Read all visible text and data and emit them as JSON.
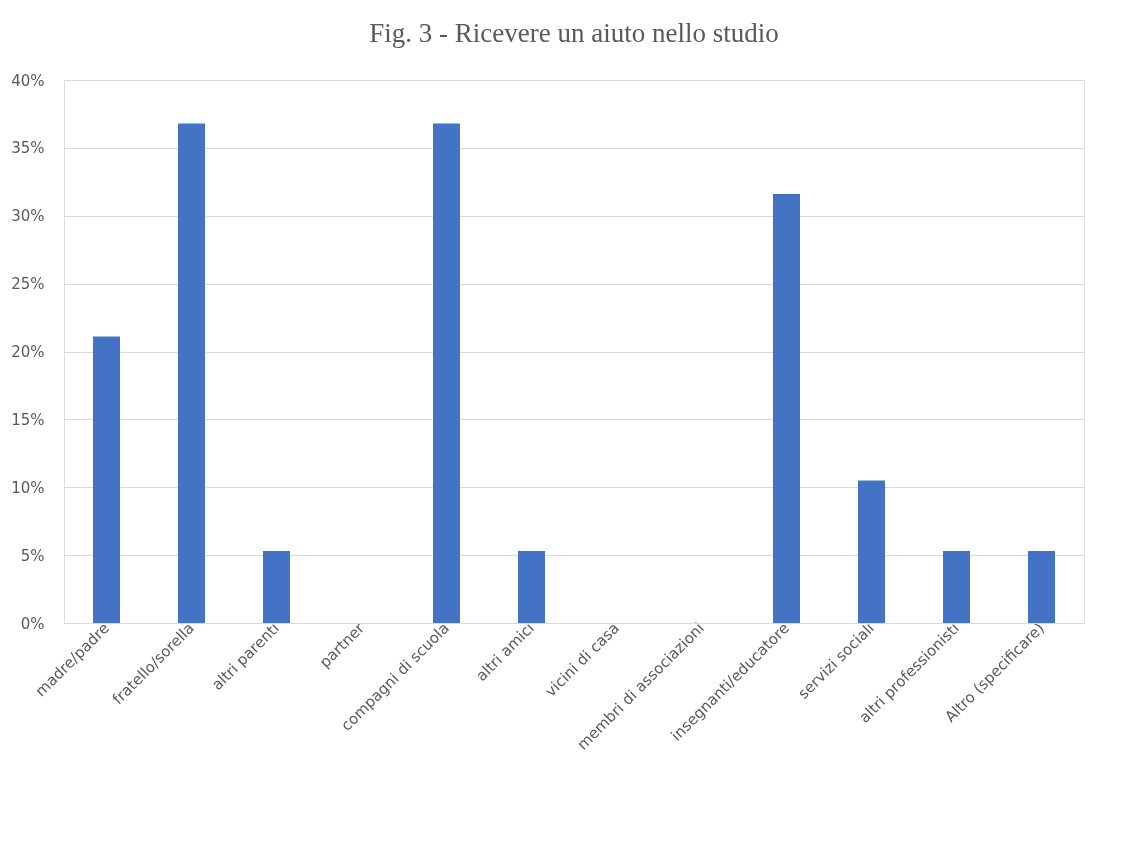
{
  "chart_data": {
    "type": "bar",
    "title": "Fig. 3 - Ricevere un aiuto nello studio",
    "categories": [
      "madre/padre",
      "fratello/sorella",
      "altri parenti",
      "partner",
      "compagni di scuola",
      "altri amici",
      "vicini di casa",
      "membri di associazioni",
      "insegnanti/educatore",
      "servizi sociali",
      "altri professionisti",
      "Altro (specificare)"
    ],
    "values": [
      21.1,
      36.8,
      5.3,
      0,
      36.8,
      5.3,
      0,
      0,
      31.6,
      10.5,
      5.3,
      5.3
    ],
    "color": "#4472c4",
    "ylim": [
      0,
      40
    ],
    "yticks": [
      {
        "value": 0,
        "label": "0%"
      },
      {
        "value": 5,
        "label": "5%"
      },
      {
        "value": 10,
        "label": "10%"
      },
      {
        "value": 15,
        "label": "15%"
      },
      {
        "value": 20,
        "label": "20%"
      },
      {
        "value": 25,
        "label": "25%"
      },
      {
        "value": 30,
        "label": "30%"
      },
      {
        "value": 35,
        "label": "35%"
      },
      {
        "value": 40,
        "label": "40%"
      }
    ],
    "grid": "y"
  }
}
